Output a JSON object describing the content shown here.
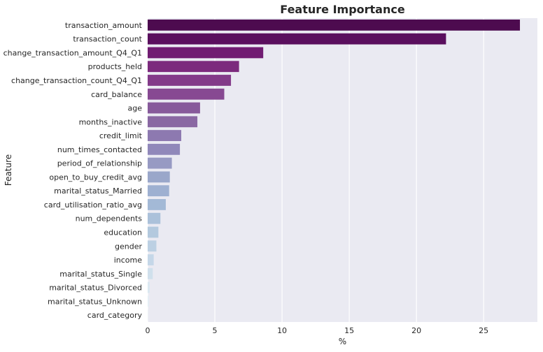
{
  "chart_data": {
    "type": "bar",
    "orientation": "horizontal",
    "title": "Feature Importance",
    "xlabel": "%",
    "ylabel": "Feature",
    "xlim": [
      0,
      29
    ],
    "xticks": [
      0,
      5,
      10,
      15,
      20,
      25
    ],
    "grid": true,
    "legend": "none",
    "background_color": "#eaeaf2",
    "grid_color": "#ffffff",
    "categories": [
      "transaction_amount",
      "transaction_count",
      "change_transaction_amount_Q4_Q1",
      "products_held",
      "change_transaction_count_Q4_Q1",
      "card_balance",
      "age",
      "months_inactive",
      "credit_limit",
      "num_times_contacted",
      "period_of_relationship",
      "open_to_buy_credit_avg",
      "marital_status_Married",
      "card_utilisation_ratio_avg",
      "num_dependents",
      "education",
      "gender",
      "income",
      "marital_status_Single",
      "marital_status_Divorced",
      "marital_status_Unknown",
      "card_category"
    ],
    "values": [
      27.7,
      22.2,
      8.6,
      6.8,
      6.2,
      5.7,
      3.9,
      3.7,
      2.5,
      2.4,
      1.8,
      1.65,
      1.6,
      1.35,
      0.95,
      0.8,
      0.65,
      0.45,
      0.38,
      0.15,
      0.1,
      0.03
    ],
    "colors": [
      "#4d0b4f",
      "#5a0f5e",
      "#711c72",
      "#7c2a7d",
      "#833a89",
      "#874992",
      "#875a9b",
      "#8a68a3",
      "#8d79b0",
      "#9088ba",
      "#979ac3",
      "#9aa7ca",
      "#9eb0d1",
      "#a3b9d6",
      "#abc1da",
      "#b3c9de",
      "#bcd0e3",
      "#c5d7e8",
      "#d0e0ec",
      "#dbe8f1",
      "#e5eef5",
      "#eef4f9"
    ]
  }
}
